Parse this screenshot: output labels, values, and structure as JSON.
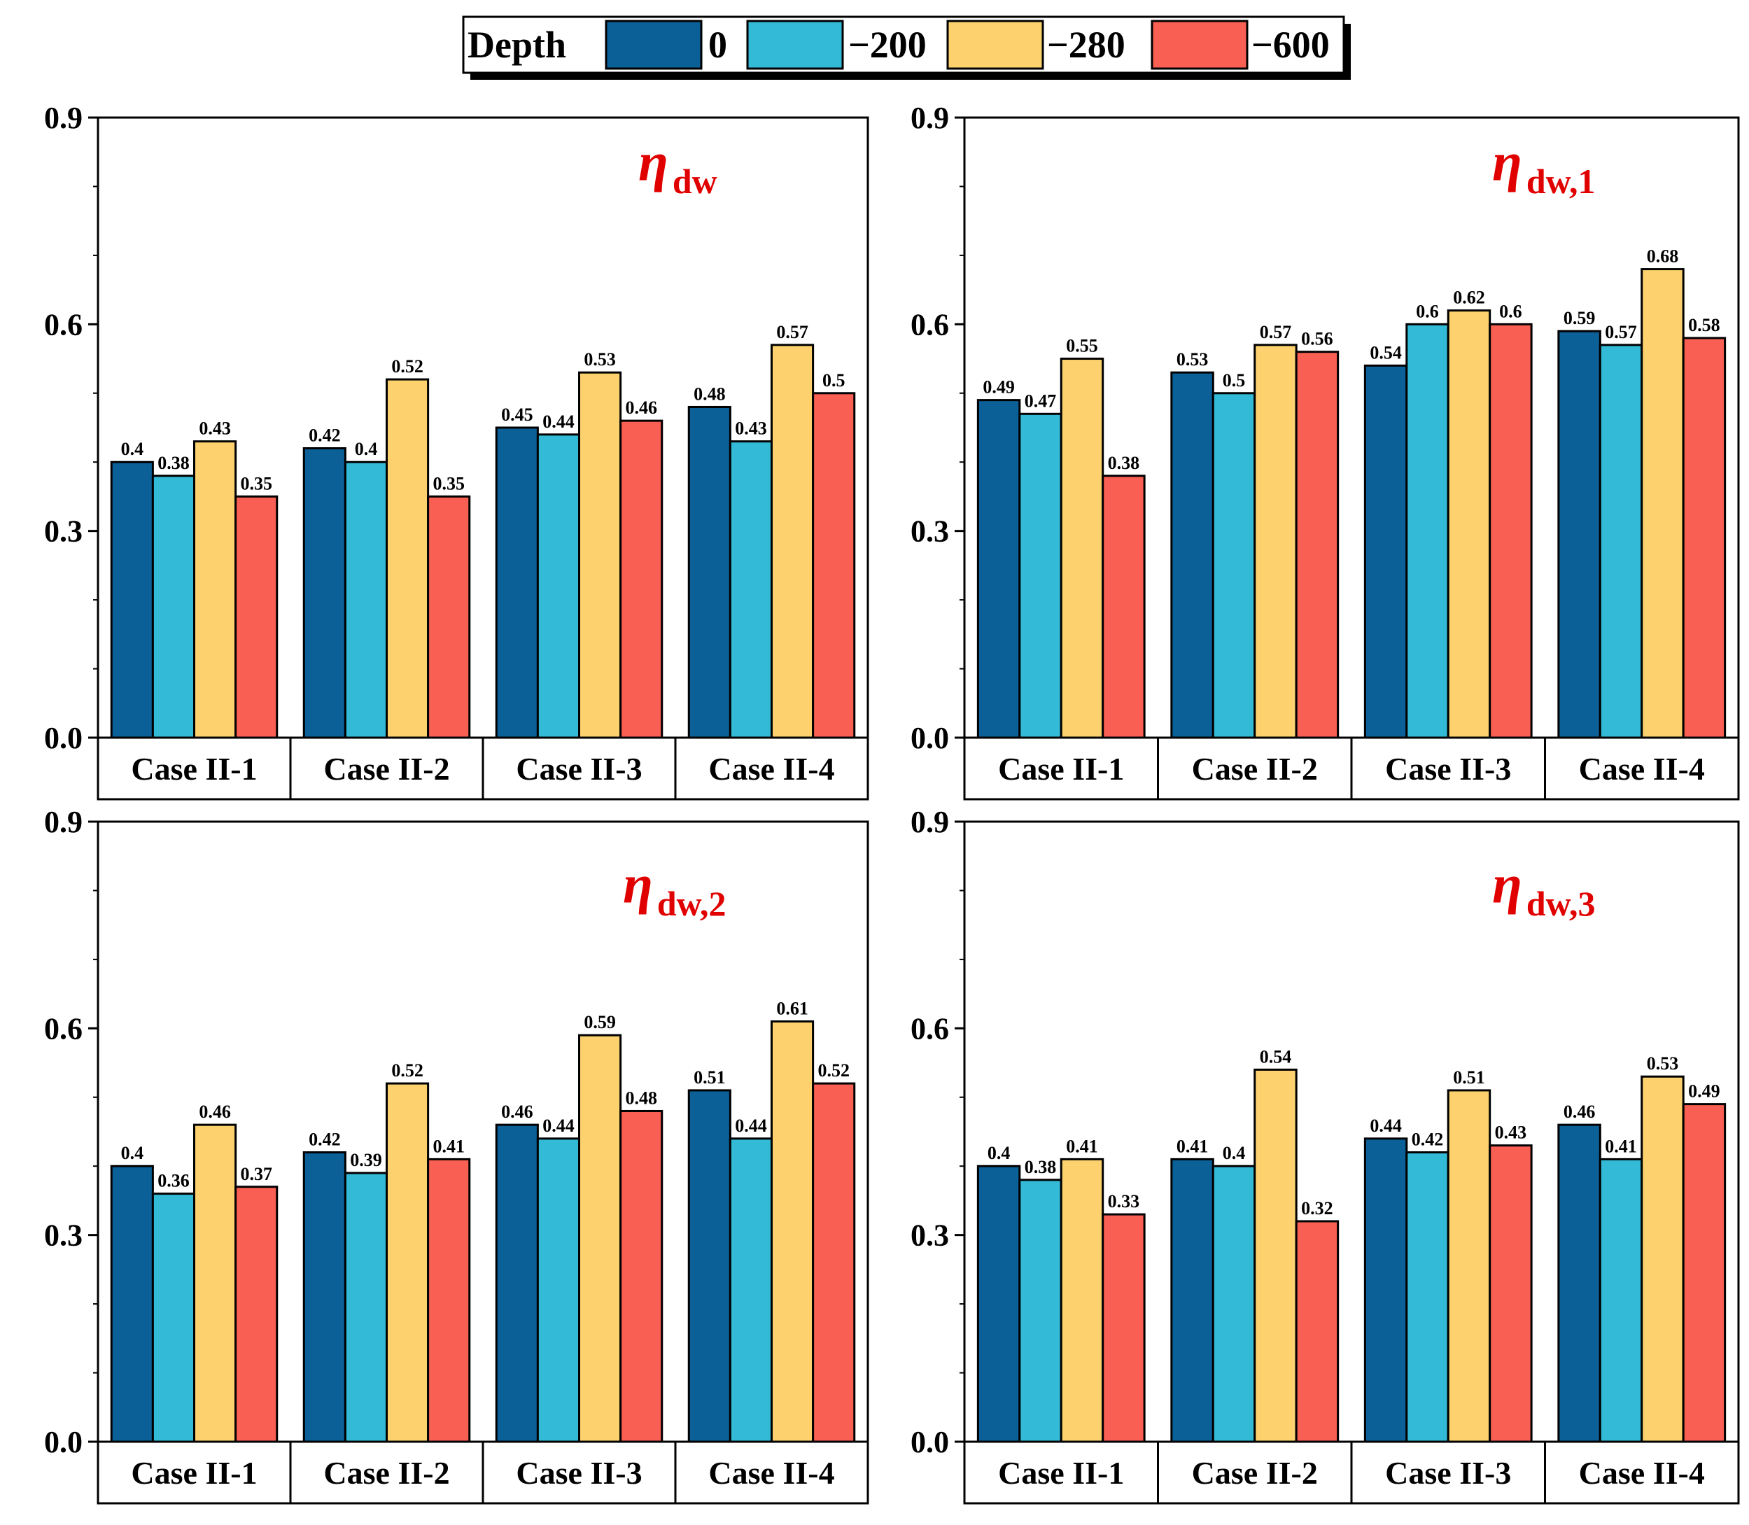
{
  "legend": {
    "title": "Depth",
    "entries": [
      {
        "label": "0",
        "color": "#0c6098"
      },
      {
        "label": "−200",
        "color": "#33bad6"
      },
      {
        "label": "−280",
        "color": "#fdd26e"
      },
      {
        "label": "−600",
        "color": "#f95f52"
      }
    ]
  },
  "chart_data": [
    {
      "type": "bar",
      "title_symbol": "η",
      "title_subscript": "dw",
      "categories": [
        "Case II-1",
        "Case II-2",
        "Case II-3",
        "Case II-4"
      ],
      "ylim": [
        0,
        0.9
      ],
      "yticks": [
        "0.0",
        "0.3",
        "0.6",
        "0.9"
      ],
      "series": [
        {
          "name": "0",
          "values": [
            0.4,
            0.42,
            0.45,
            0.48
          ],
          "labels": [
            "0.4",
            "0.42",
            "0.45",
            "0.48"
          ]
        },
        {
          "name": "−200",
          "values": [
            0.38,
            0.4,
            0.44,
            0.43
          ],
          "labels": [
            "0.38",
            "0.4",
            "0.44",
            "0.43"
          ]
        },
        {
          "name": "−280",
          "values": [
            0.43,
            0.52,
            0.53,
            0.57
          ],
          "labels": [
            "0.43",
            "0.52",
            "0.53",
            "0.57"
          ]
        },
        {
          "name": "−600",
          "values": [
            0.35,
            0.35,
            0.46,
            0.5
          ],
          "labels": [
            "0.35",
            "0.35",
            "0.46",
            "0.5"
          ]
        }
      ]
    },
    {
      "type": "bar",
      "title_symbol": "η",
      "title_subscript": "dw,1",
      "categories": [
        "Case II-1",
        "Case II-2",
        "Case II-3",
        "Case II-4"
      ],
      "ylim": [
        0,
        0.9
      ],
      "yticks": [
        "0.0",
        "0.3",
        "0.6",
        "0.9"
      ],
      "series": [
        {
          "name": "0",
          "values": [
            0.49,
            0.53,
            0.54,
            0.59
          ],
          "labels": [
            "0.49",
            "0.53",
            "0.54",
            "0.59"
          ]
        },
        {
          "name": "−200",
          "values": [
            0.47,
            0.5,
            0.6,
            0.57
          ],
          "labels": [
            "0.47",
            "0.5",
            "0.6",
            "0.57"
          ]
        },
        {
          "name": "−280",
          "values": [
            0.55,
            0.57,
            0.62,
            0.68
          ],
          "labels": [
            "0.55",
            "0.57",
            "0.62",
            "0.68"
          ]
        },
        {
          "name": "−600",
          "values": [
            0.38,
            0.56,
            0.6,
            0.58
          ],
          "labels": [
            "0.38",
            "0.56",
            "0.6",
            "0.58"
          ]
        }
      ]
    },
    {
      "type": "bar",
      "title_symbol": "η",
      "title_subscript": "dw,2",
      "categories": [
        "Case II-1",
        "Case II-2",
        "Case II-3",
        "Case II-4"
      ],
      "ylim": [
        0,
        0.9
      ],
      "yticks": [
        "0.0",
        "0.3",
        "0.6",
        "0.9"
      ],
      "series": [
        {
          "name": "0",
          "values": [
            0.4,
            0.42,
            0.46,
            0.51
          ],
          "labels": [
            "0.4",
            "0.42",
            "0.46",
            "0.51"
          ]
        },
        {
          "name": "−200",
          "values": [
            0.36,
            0.39,
            0.44,
            0.44
          ],
          "labels": [
            "0.36",
            "0.39",
            "0.44",
            "0.44"
          ]
        },
        {
          "name": "−280",
          "values": [
            0.46,
            0.52,
            0.59,
            0.61
          ],
          "labels": [
            "0.46",
            "0.52",
            "0.59",
            "0.61"
          ]
        },
        {
          "name": "−600",
          "values": [
            0.37,
            0.41,
            0.48,
            0.52
          ],
          "labels": [
            "0.37",
            "0.41",
            "0.48",
            "0.52"
          ]
        }
      ]
    },
    {
      "type": "bar",
      "title_symbol": "η",
      "title_subscript": "dw,3",
      "categories": [
        "Case II-1",
        "Case II-2",
        "Case II-3",
        "Case II-4"
      ],
      "ylim": [
        0,
        0.9
      ],
      "yticks": [
        "0.0",
        "0.3",
        "0.6",
        "0.9"
      ],
      "series": [
        {
          "name": "0",
          "values": [
            0.4,
            0.41,
            0.44,
            0.46
          ],
          "labels": [
            "0.4",
            "0.41",
            "0.44",
            "0.46"
          ]
        },
        {
          "name": "−200",
          "values": [
            0.38,
            0.4,
            0.42,
            0.41
          ],
          "labels": [
            "0.38",
            "0.4",
            "0.42",
            "0.41"
          ]
        },
        {
          "name": "−280",
          "values": [
            0.41,
            0.54,
            0.51,
            0.53
          ],
          "labels": [
            "0.41",
            "0.54",
            "0.51",
            "0.53"
          ]
        },
        {
          "name": "−600",
          "values": [
            0.33,
            0.32,
            0.43,
            0.49
          ],
          "labels": [
            "0.33",
            "0.32",
            "0.43",
            "0.49"
          ]
        }
      ]
    }
  ]
}
